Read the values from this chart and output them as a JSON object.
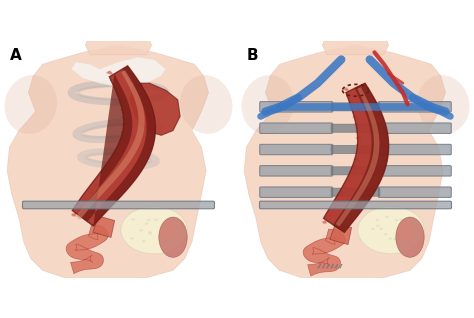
{
  "figure_width": 4.74,
  "figure_height": 3.18,
  "dpi": 100,
  "background_color": "#ffffff",
  "label_A": "A",
  "label_B": "B",
  "label_fontsize": 11,
  "label_fontweight": "bold",
  "skin_color_hex": [
    245,
    210,
    190
  ],
  "skin_edge_hex": [
    220,
    175,
    155
  ],
  "shoulder_color_hex": [
    240,
    200,
    180
  ],
  "esoph_dark_hex": [
    110,
    25,
    20
  ],
  "esoph_mid_hex": [
    175,
    55,
    45
  ],
  "esoph_light_hex": [
    210,
    100,
    80
  ],
  "esoph_highlight_hex": [
    220,
    140,
    110
  ],
  "stomach_cream_hex": [
    245,
    240,
    210
  ],
  "stomach_pink_hex": [
    200,
    120,
    110
  ],
  "rib_color_hex": [
    155,
    162,
    170
  ],
  "rib_dark_hex": [
    110,
    118,
    128
  ],
  "blue_vessel_hex": [
    60,
    120,
    195
  ],
  "red_vessel_hex": [
    195,
    45,
    45
  ],
  "white_tissue_hex": [
    245,
    242,
    238
  ],
  "neck_tissue_hex": [
    235,
    215,
    200
  ]
}
